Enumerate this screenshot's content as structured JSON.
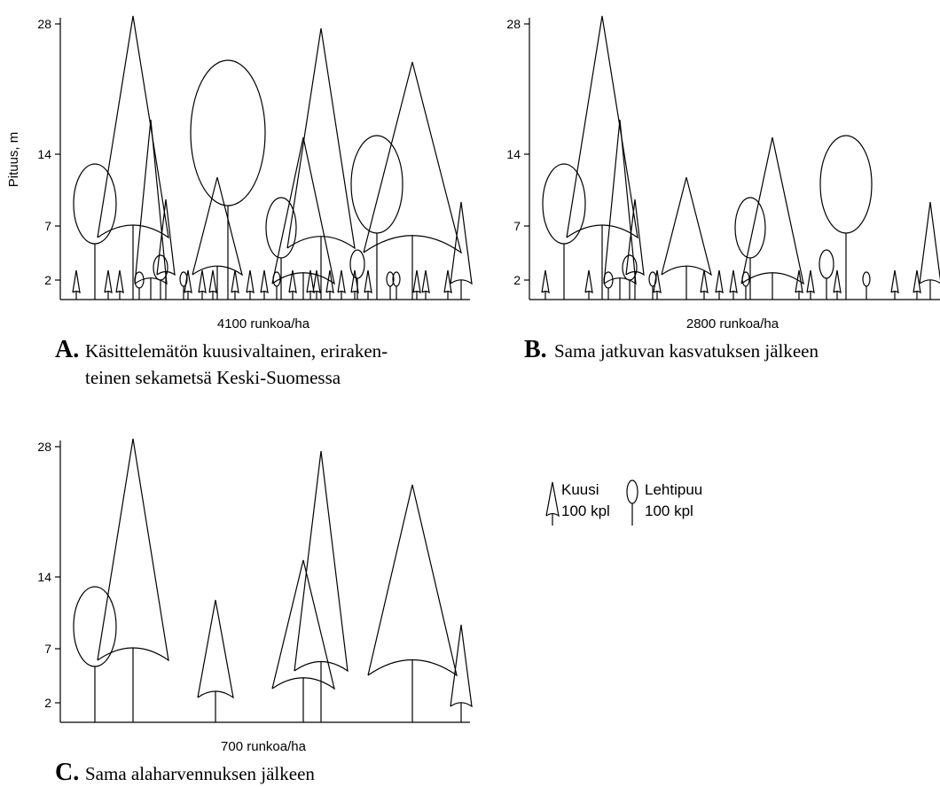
{
  "y_axis": {
    "label": "Pituus, m",
    "ticks": [
      28,
      14,
      7,
      2
    ]
  },
  "panels": [
    {
      "letter": "A.",
      "density": "4100 runkoa/ha",
      "caption": [
        "Käsittelemätön kuusivaltainen, eriraken-",
        "teinen sekametsä Keski-Suomessa"
      ]
    },
    {
      "letter": "B.",
      "density": "2800 runkoa/ha",
      "caption": [
        "Sama jatkuvan kasvatuksen jälkeen"
      ]
    },
    {
      "letter": "C.",
      "density": "700 runkoa/ha",
      "caption": [
        "Sama alaharvennuksen jälkeen"
      ]
    }
  ],
  "legend": [
    {
      "label": "Kuusi",
      "count": "100 kpl"
    },
    {
      "label": "Lehtipuu",
      "count": "100 kpl"
    }
  ]
}
